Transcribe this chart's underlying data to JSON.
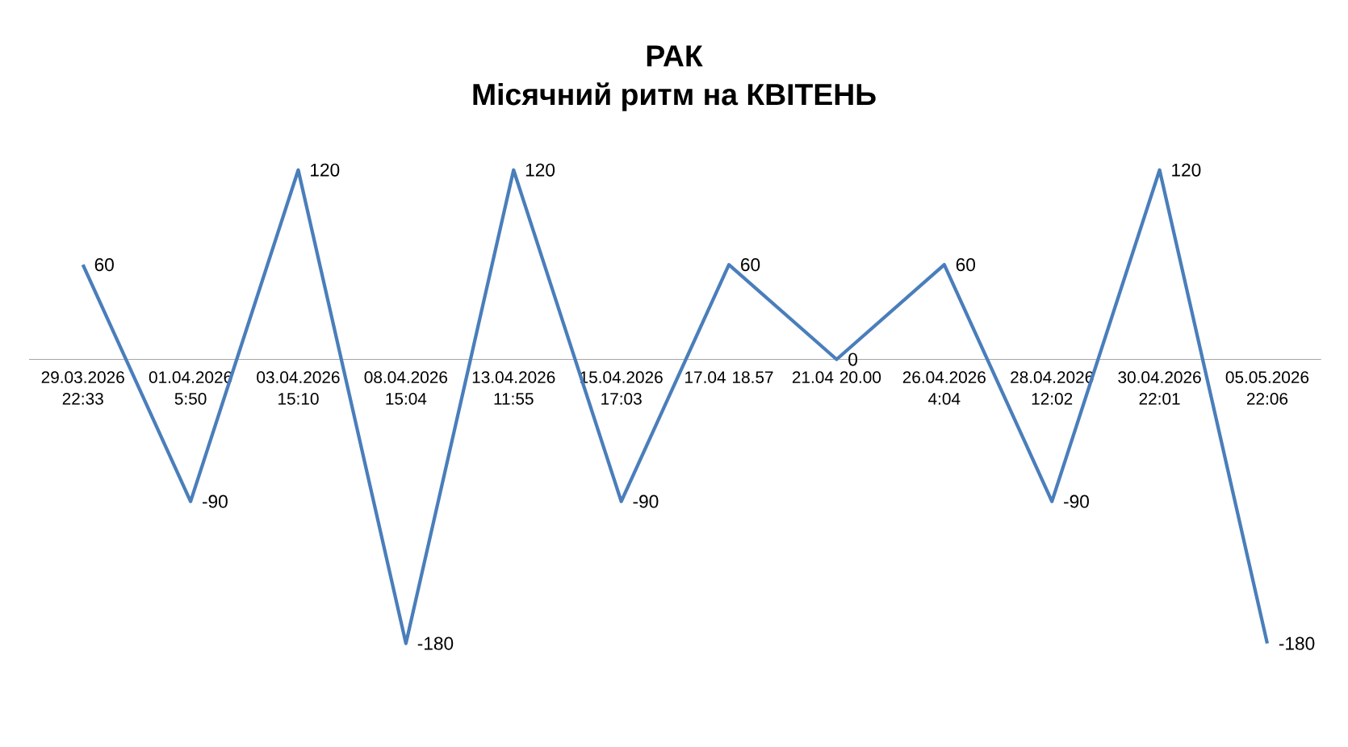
{
  "chart_data": {
    "type": "line",
    "title": "РАК",
    "subtitle": "Місячний ритм на КВІТЕНЬ",
    "categories": [
      "29.03.2026 22:33",
      "01.04.2026 5:50",
      "03.04.2026 15:10",
      "08.04.2026 15:04",
      "13.04.2026 11:55",
      "15.04.2026 17:03",
      "17.04 18.57",
      "21.04 20.00",
      "26.04.2026 4:04",
      "28.04.2026 12:02",
      "30.04.2026 22:01",
      "05.05.2026 22:06"
    ],
    "series": [
      {
        "color": "#4a7ebb",
        "values": [
          60,
          -90,
          120,
          -180,
          120,
          -90,
          60,
          0,
          60,
          -90,
          120,
          -180
        ],
        "value_labels": [
          "60",
          "-90",
          "120",
          "-180",
          "120",
          "-90",
          "60",
          "0",
          "60",
          "-90",
          "120",
          "-180"
        ]
      }
    ]
  }
}
